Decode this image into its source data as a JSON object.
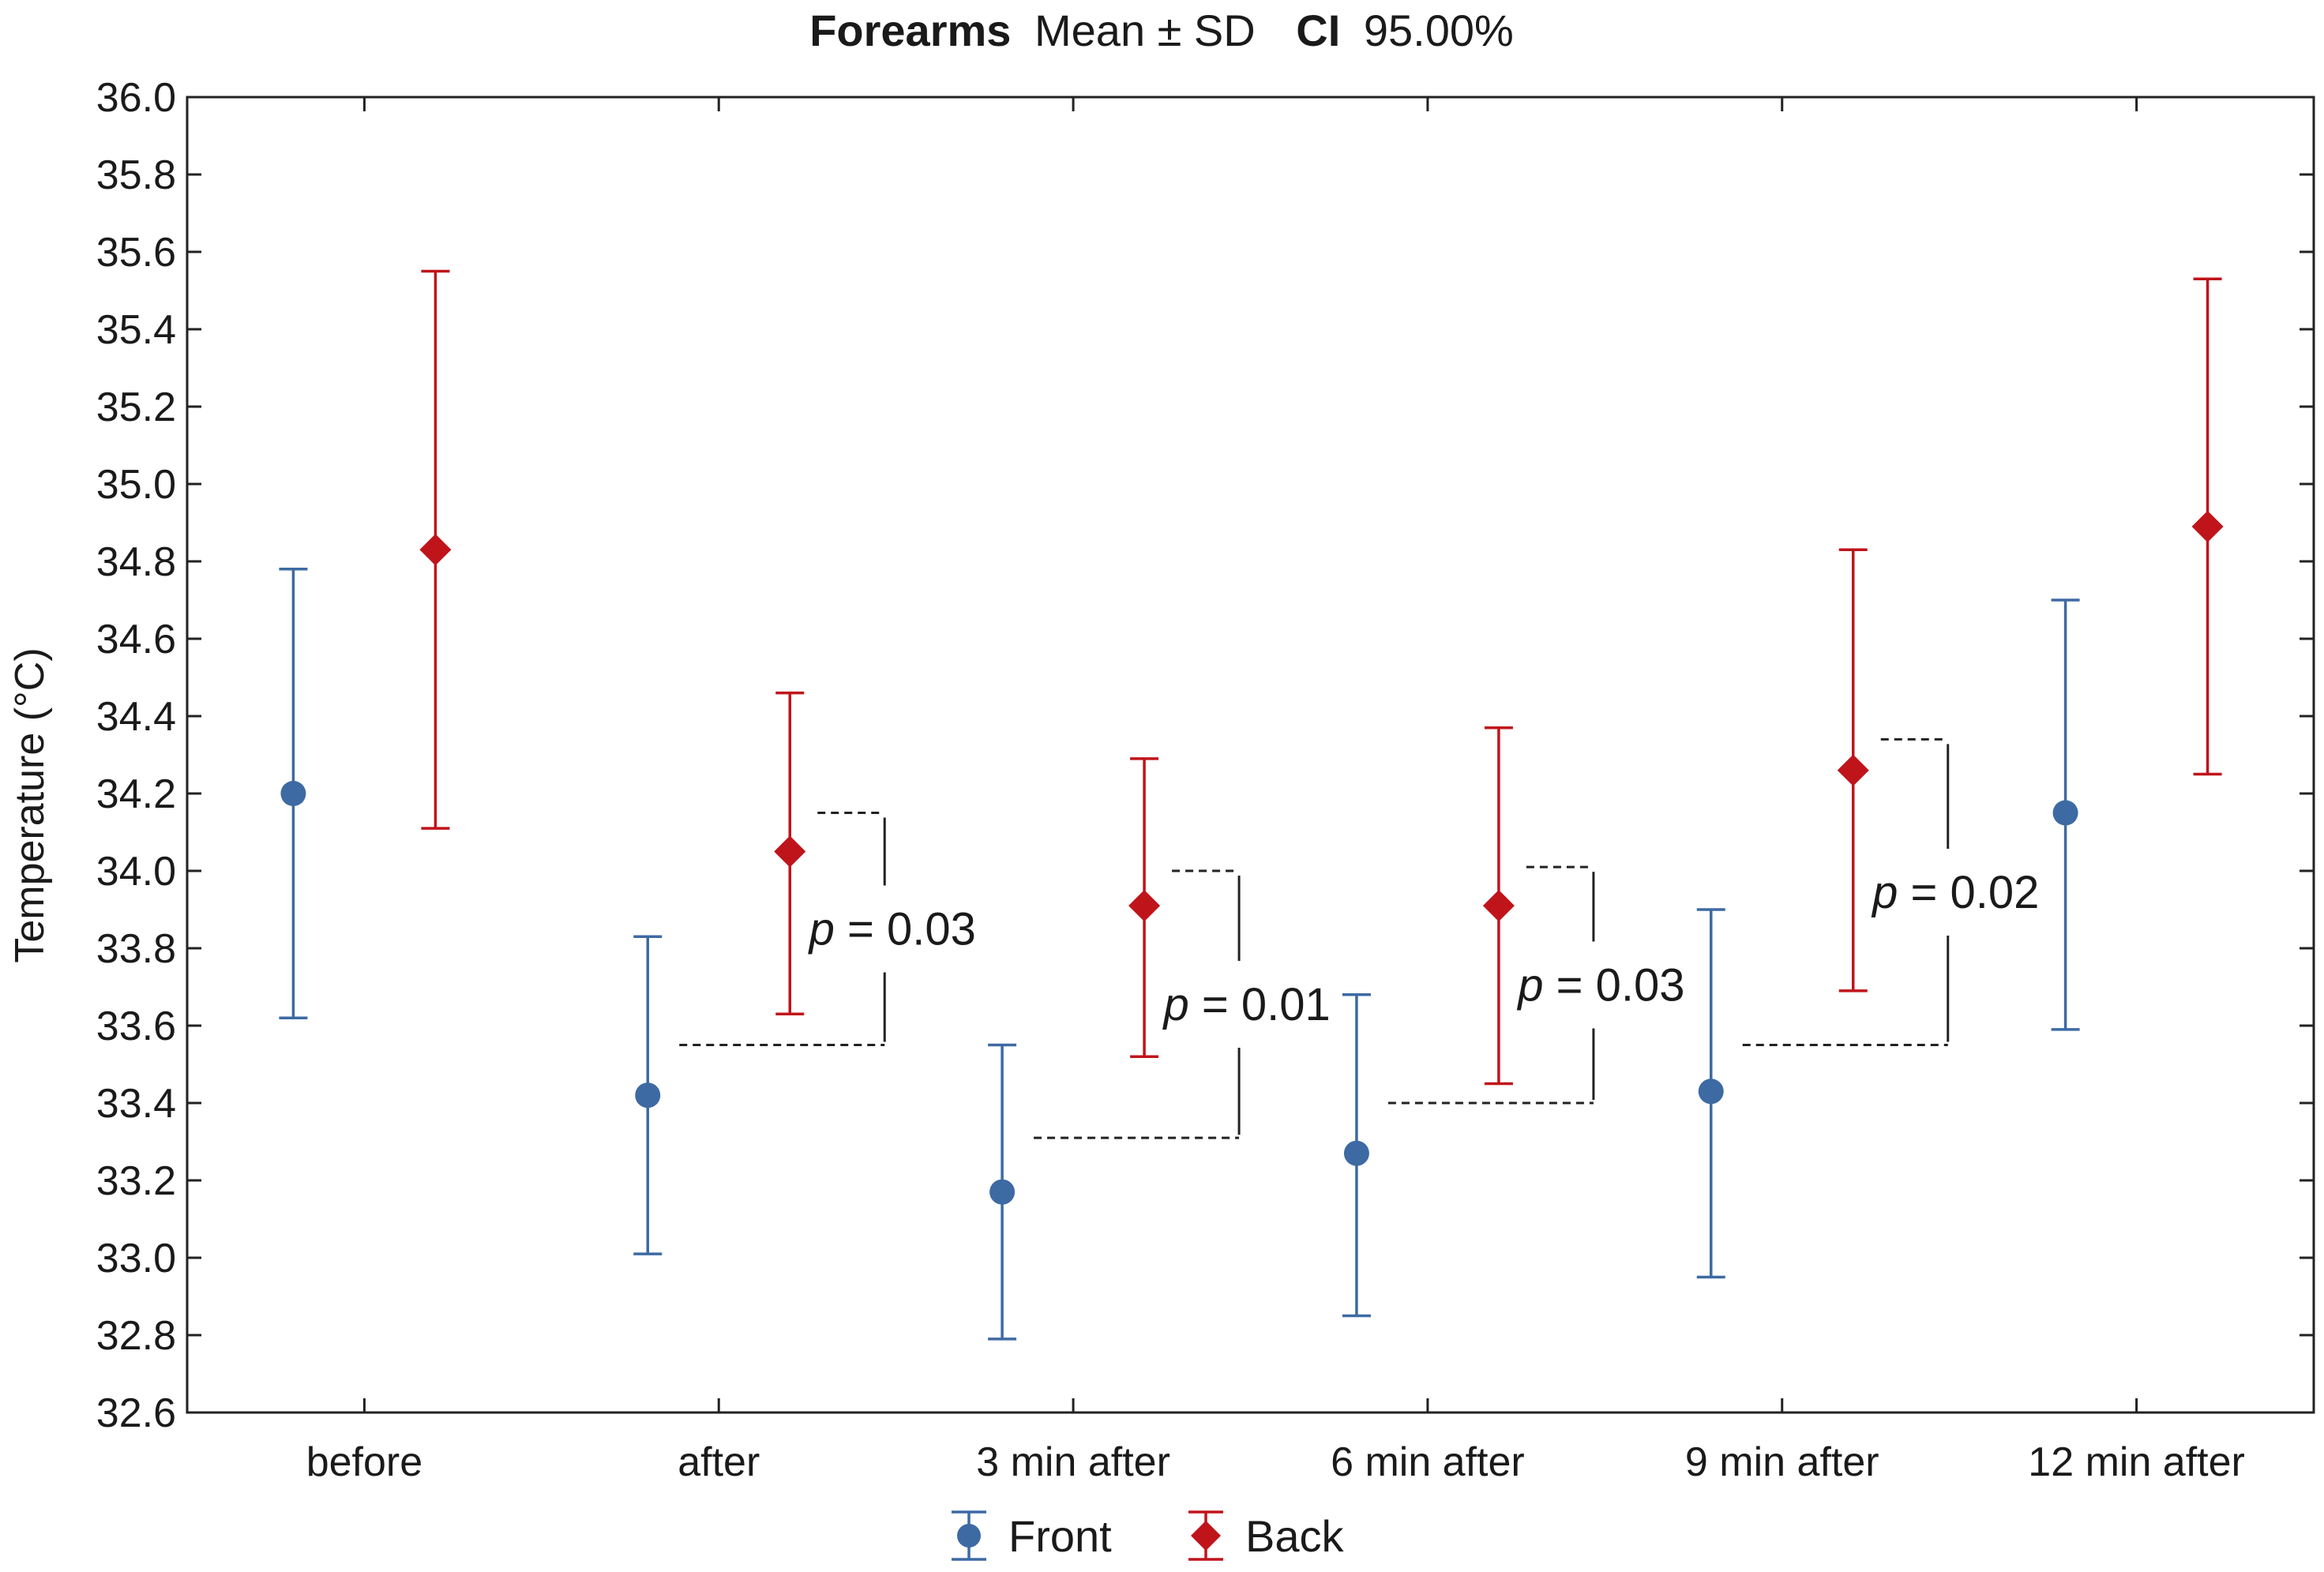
{
  "chart_data": {
    "type": "errorbar",
    "title": {
      "bold_part": "Forearms",
      "regular_part": "Mean ± SD",
      "ci_bold": "CI",
      "ci_value": "95.00%"
    },
    "xlabel": "",
    "ylabel": "Temperature (°C)",
    "ylim": [
      32.6,
      36.0
    ],
    "yticks": [
      32.6,
      32.8,
      33.0,
      33.2,
      33.4,
      33.6,
      33.8,
      34.0,
      34.2,
      34.4,
      34.6,
      34.8,
      35.0,
      35.2,
      35.4,
      35.6,
      35.8,
      36.0
    ],
    "ytick_labels": [
      "32.6",
      "32.8",
      "33.0",
      "33.2",
      "33.4",
      "33.6",
      "33.8",
      "34.0",
      "34.2",
      "34.4",
      "34.6",
      "34.8",
      "35.0",
      "35.2",
      "35.4",
      "35.6",
      "35.8",
      "36.0"
    ],
    "categories": [
      "before",
      "after",
      "3 min after",
      "6 min after",
      "9 min after",
      "12 min after"
    ],
    "series": [
      {
        "name": "Front",
        "color": "#3d6aa3",
        "marker": "circle",
        "means": [
          34.2,
          33.42,
          33.17,
          33.27,
          33.43,
          34.15
        ],
        "lower": [
          33.62,
          33.01,
          32.79,
          32.85,
          32.95,
          33.59
        ],
        "upper": [
          34.78,
          33.83,
          33.55,
          33.68,
          33.9,
          34.7
        ]
      },
      {
        "name": "Back",
        "color": "#c0141b",
        "marker": "diamond",
        "means": [
          34.83,
          34.05,
          33.91,
          33.91,
          34.26,
          34.89
        ],
        "lower": [
          34.11,
          33.63,
          33.52,
          33.45,
          33.69,
          34.25
        ],
        "upper": [
          35.55,
          34.46,
          34.29,
          34.37,
          34.83,
          35.53
        ]
      }
    ],
    "annotations": [
      {
        "category_index": 1,
        "p_italic": "p",
        "text": " = 0.03",
        "from_value": 33.55,
        "to_value": 34.15
      },
      {
        "category_index": 2,
        "p_italic": "p",
        "text": " = 0.01",
        "from_value": 33.31,
        "to_value": 34.0
      },
      {
        "category_index": 3,
        "p_italic": "p",
        "text": " = 0.03",
        "from_value": 33.4,
        "to_value": 34.01
      },
      {
        "category_index": 4,
        "p_italic": "p",
        "text": " = 0.02",
        "from_value": 33.55,
        "to_value": 34.34
      }
    ],
    "legend": {
      "placement": "bottom-center",
      "entries": [
        "Front",
        "Back"
      ]
    },
    "grid": false
  }
}
